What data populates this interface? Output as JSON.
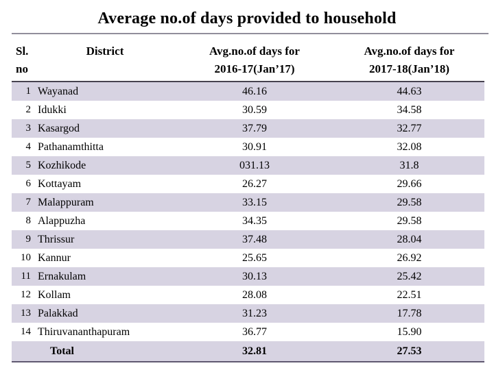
{
  "title": "Average no.of days provided to household",
  "colors": {
    "band": "#d7d3e2",
    "title_rule": "#918e9b",
    "header_line": "#46424f",
    "total_line": "#5f5870"
  },
  "table": {
    "headers": {
      "sl_line1": "Sl.",
      "sl_line2": "no",
      "district": "District",
      "col2016_line1": "Avg.no.of days for",
      "col2016_line2": "2016-17(Jan’17)",
      "col2017_line1": "Avg.no.of days for",
      "col2017_line2": "2017-18(Jan’18)"
    },
    "rows": [
      {
        "sl": "1",
        "district": "Wayanad",
        "y2016": "46.16",
        "y2017": "44.63"
      },
      {
        "sl": "2",
        "district": "Idukki",
        "y2016": "30.59",
        "y2017": "34.58"
      },
      {
        "sl": "3",
        "district": "Kasargod",
        "y2016": "37.79",
        "y2017": "32.77"
      },
      {
        "sl": "4",
        "district": "Pathanamthitta",
        "y2016": "30.91",
        "y2017": "32.08"
      },
      {
        "sl": "5",
        "district": "Kozhikode",
        "y2016": "031.13",
        "y2017": "31.8"
      },
      {
        "sl": "6",
        "district": "Kottayam",
        "y2016": "26.27",
        "y2017": "29.66"
      },
      {
        "sl": "7",
        "district": "Malappuram",
        "y2016": "33.15",
        "y2017": "29.58"
      },
      {
        "sl": "8",
        "district": "Alappuzha",
        "y2016": "34.35",
        "y2017": "29.58"
      },
      {
        "sl": "9",
        "district": "Thrissur",
        "y2016": "37.48",
        "y2017": "28.04"
      },
      {
        "sl": "10",
        "district": "Kannur",
        "y2016": "25.65",
        "y2017": "26.92"
      },
      {
        "sl": "11",
        "district": "Ernakulam",
        "y2016": "30.13",
        "y2017": "25.42"
      },
      {
        "sl": "12",
        "district": "Kollam",
        "y2016": "28.08",
        "y2017": "22.51"
      },
      {
        "sl": "13",
        "district": "Palakkad",
        "y2016": "31.23",
        "y2017": "17.78"
      },
      {
        "sl": "14",
        "district": "Thiruvananthapuram",
        "y2016": "36.77",
        "y2017": "15.90"
      }
    ],
    "total": {
      "label": "Total",
      "y2016": "32.81",
      "y2017": "27.53"
    }
  }
}
